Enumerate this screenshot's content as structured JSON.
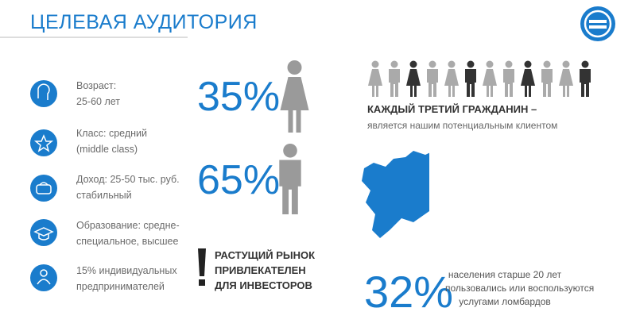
{
  "header": {
    "title": "ЦЕЛЕВАЯ АУДИТОРИЯ"
  },
  "features": [
    {
      "lines": [
        "Возраст:",
        "25-60 лет"
      ]
    },
    {
      "lines": [
        "Класс: средний",
        "(middle class)"
      ]
    },
    {
      "lines": [
        "Доход: 25-50 тыс. руб.",
        "стабильный"
      ]
    },
    {
      "lines": [
        "Образование: средне-",
        "специальное, высшее"
      ]
    },
    {
      "lines": [
        "15% индивидуальных",
        "предпринимателей"
      ]
    }
  ],
  "stats": [
    {
      "value": "35%"
    },
    {
      "value": "65%"
    }
  ],
  "callout": {
    "lines": [
      "РАСТУЩИЙ РЫНОК",
      "ПРИВЛЕКАТЕЛЕН",
      "ДЛЯ ИНВЕСТОРОВ"
    ]
  },
  "citizen": {
    "headline": "КАЖДЫЙ ТРЕТИЙ ГРАЖДАНИН –",
    "subline": "является нашим потенциальным клиентом"
  },
  "pawn": {
    "value": "32%",
    "lines": [
      "населения старше 20 лет",
      "пользовались или воспользуются",
      "услугами ломбардов"
    ]
  }
}
